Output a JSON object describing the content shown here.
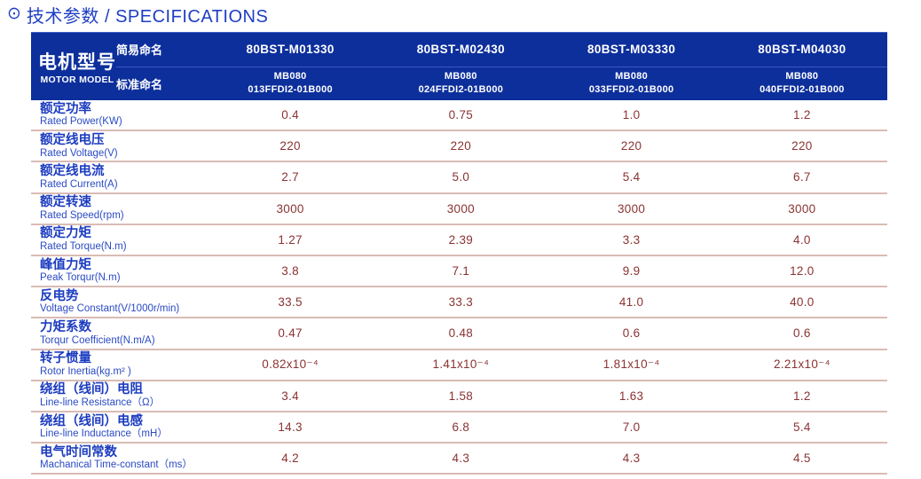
{
  "title": {
    "icon": "⊙",
    "text": "技术参数 / SPECIFICATIONS"
  },
  "table": {
    "motor_model": {
      "zh": "电机型号",
      "en": "MOTOR MODEL"
    },
    "simple_name_label": "简易命名",
    "standard_name_label": "标准命名",
    "models": [
      "80BST-M01330",
      "80BST-M02430",
      "80BST-M03330",
      "80BST-M04030"
    ],
    "standard_names": [
      {
        "line1": "MB080",
        "line2": "013FFDI2-01B000"
      },
      {
        "line1": "MB080",
        "line2": "024FFDI2-01B000"
      },
      {
        "line1": "MB080",
        "line2": "033FFDI2-01B000"
      },
      {
        "line1": "MB080",
        "line2": "040FFDI2-01B000"
      }
    ],
    "rows": [
      {
        "zh": "额定功率",
        "en": "Rated Power(KW)",
        "values": [
          "0.4",
          "0.75",
          "1.0",
          "1.2"
        ]
      },
      {
        "zh": "额定线电压",
        "en": "Rated Voltage(V)",
        "values": [
          "220",
          "220",
          "220",
          "220"
        ]
      },
      {
        "zh": "额定线电流",
        "en": "Rated Current(A)",
        "values": [
          "2.7",
          "5.0",
          "5.4",
          "6.7"
        ]
      },
      {
        "zh": "额定转速",
        "en": "Rated Speed(rpm)",
        "values": [
          "3000",
          "3000",
          "3000",
          "3000"
        ]
      },
      {
        "zh": "额定力矩",
        "en": "Rated Torque(N.m)",
        "values": [
          "1.27",
          "2.39",
          "3.3",
          "4.0"
        ]
      },
      {
        "zh": "峰值力矩",
        "en": "Peak Torqur(N.m)",
        "values": [
          "3.8",
          "7.1",
          "9.9",
          "12.0"
        ]
      },
      {
        "zh": "反电势",
        "en": "Voltage Constant(V/1000r/min)",
        "values": [
          "33.5",
          "33.3",
          "41.0",
          "40.0"
        ]
      },
      {
        "zh": "力矩系数",
        "en": "Torqur Coefficient(N.m/A)",
        "values": [
          "0.47",
          "0.48",
          "0.6",
          "0.6"
        ]
      },
      {
        "zh": "转子惯量",
        "en": "Rotor Inertia(kg.m² )",
        "values": [
          "0.82x10⁻⁴",
          "1.41x10⁻⁴",
          "1.81x10⁻⁴",
          "2.21x10⁻⁴"
        ]
      },
      {
        "zh": "绕组（线间）电阻",
        "en": "Line-line Resistance（Ω）",
        "values": [
          "3.4",
          "1.58",
          "1.63",
          "1.2"
        ]
      },
      {
        "zh": "绕组（线间）电感",
        "en": "Line-line Inductance（mH）",
        "values": [
          "14.3",
          "6.8",
          "7.0",
          "5.4"
        ]
      },
      {
        "zh": "电气时间常数",
        "en": "Machanical Time-constant（ms）",
        "values": [
          "4.2",
          "4.3",
          "4.3",
          "4.5"
        ]
      }
    ]
  },
  "colors": {
    "header_bg": "#0d2f9c",
    "header_divider": "#3a57c0",
    "title_blue": "#1e3ec3",
    "label_blue": "#1c3cc0",
    "value_maroon": "#8b3232",
    "row_separator": "#d9bcb5"
  }
}
